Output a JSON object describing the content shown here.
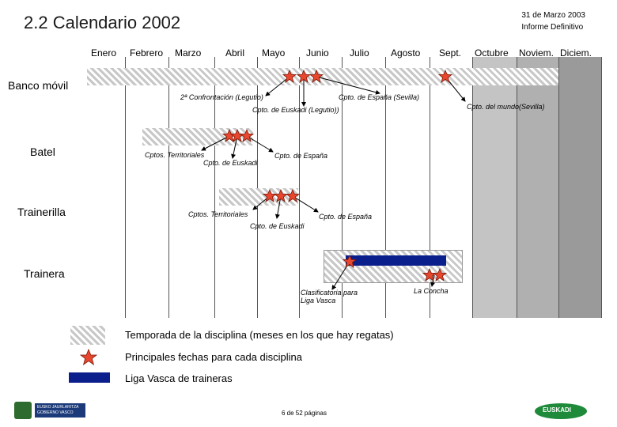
{
  "header": {
    "title": "2.2 Calendario 2002",
    "date": "31 de Marzo 2003",
    "report": "Informe Definitivo"
  },
  "months": [
    "Enero",
    "Febrero",
    "Marzo",
    "Abril",
    "Mayo",
    "Junio",
    "Julio",
    "Agosto",
    "Sept.",
    "Octubre",
    "Noviem.",
    "Diciem."
  ],
  "rows": {
    "banco_movil": "Banco móvil",
    "batel": "Batel",
    "trainerilla": "Trainerilla",
    "trainera": "Trainera"
  },
  "annotations": {
    "banco_confrontacion": "2ª Confrontación (Legutio)",
    "banco_euskadi": "Cpto. de Euskadi (Legutio))",
    "banco_espana": "Cpto. de España (Sevilla)",
    "banco_mundo": "Cpto. del mundo(Sevilla)",
    "batel_territoriales": "Cptos. Territoriales",
    "batel_euskadi": "Cpto. de Euskadi",
    "batel_espana": "Cpto. de España",
    "trainerilla_territoriales": "Cptos. Territoriales",
    "trainerilla_euskadi": "Cpto. de Euskadi",
    "trainerilla_espana": "Cpto. de España",
    "trainera_clasificatoria_1": "Clasificatoria para",
    "trainera_clasificatoria_2": "Liga Vasca",
    "trainera_concha": "La Concha"
  },
  "legend": {
    "season": "Temporada de la disciplina (meses en los que hay regatas)",
    "dates": "Principales fechas para cada disciplina",
    "league": "Liga Vasca de traineras"
  },
  "footer": {
    "logo_left_1": "EUSKO JAURLARITZA",
    "logo_left_2": "GOBIERNO VASCO",
    "page": "6 de 52 páginas",
    "logo_right": "EUSKADI"
  },
  "colors": {
    "star_fill": "#e8472e",
    "star_stroke": "#7a1a0a",
    "league_bar": "#0a1e8c",
    "grid_dark": "#9a9a9a",
    "grid_light": "#c4c4c4",
    "hatch": "#c8c8c8"
  }
}
